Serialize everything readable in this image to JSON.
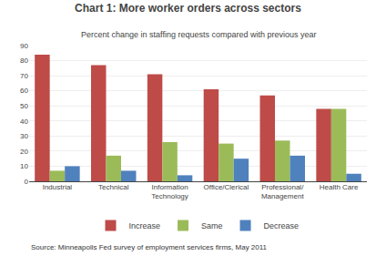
{
  "chart_data": {
    "type": "bar",
    "title": "Chart 1: More worker orders across sectors",
    "subtitle": "Percent change in staffing requests compared with previous year",
    "source": "Source: Minneapolis Fed survey of employment services firms, May 2011",
    "categories": [
      "Industrial",
      "Technical",
      "Information\nTechnology",
      "Office/Clerical",
      "Professional/\nManagement",
      "Health Care"
    ],
    "series": [
      {
        "name": "Increase",
        "color": "#BE4B48",
        "values": [
          84,
          77,
          71,
          61,
          57,
          48
        ]
      },
      {
        "name": "Same",
        "color": "#9BBB59",
        "values": [
          7,
          17,
          26,
          25,
          27,
          48
        ]
      },
      {
        "name": "Decrease",
        "color": "#4F81BD",
        "values": [
          10,
          7,
          4,
          15,
          17,
          5
        ]
      }
    ],
    "ylim": [
      0,
      90
    ],
    "yticks": [
      0,
      10,
      20,
      30,
      40,
      50,
      60,
      70,
      80,
      90
    ],
    "grid": true,
    "legend": "bottom"
  }
}
